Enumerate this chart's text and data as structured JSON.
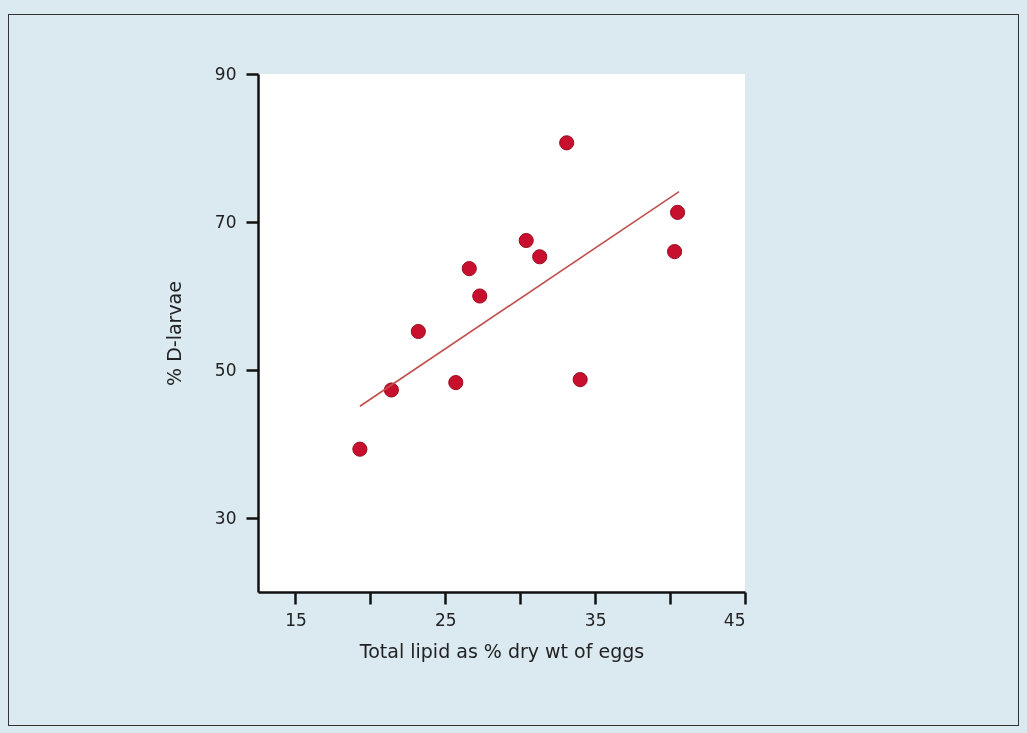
{
  "chart_data": {
    "type": "scatter",
    "xlabel": "Total lipid as % dry wt of eggs",
    "ylabel": "% D-larvae",
    "xlim": [
      12.5,
      45
    ],
    "ylim": [
      20,
      90
    ],
    "xticks": [
      15,
      {
        "value": 20,
        "label": null
      },
      25,
      {
        "value": 30,
        "label": null
      },
      35,
      {
        "value": 40,
        "label": null
      },
      45
    ],
    "yticks": [
      30,
      50,
      70,
      90
    ],
    "grid": false,
    "series": [
      {
        "marker": "circle",
        "color": "#c8102e",
        "x": [
          19.3,
          21.4,
          23.2,
          25.7,
          26.6,
          27.3,
          30.4,
          31.3,
          33.1,
          34.0,
          40.3,
          40.5
        ],
        "values": [
          39.3,
          47.3,
          55.2,
          48.3,
          63.7,
          60.0,
          67.5,
          65.3,
          80.7,
          48.7,
          66.0,
          71.3
        ]
      },
      {
        "type": "line",
        "color": "#c0504d",
        "x": [
          19.3,
          40.6
        ],
        "values": [
          45.1,
          74.1
        ]
      }
    ]
  }
}
